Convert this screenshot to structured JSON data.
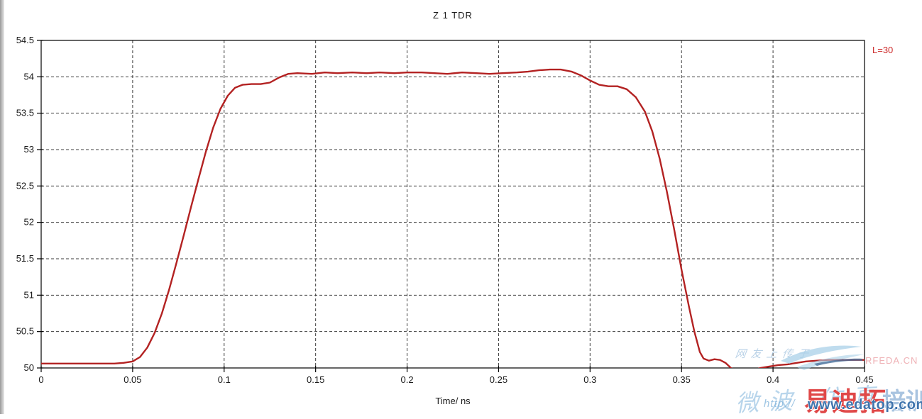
{
  "chart_data": {
    "type": "line",
    "title": "Z 1 TDR",
    "xlabel": "Time/ ns",
    "ylabel": "",
    "x_range": [
      0,
      0.45
    ],
    "y_range": [
      50,
      54.5
    ],
    "grid": "dashed",
    "legend": {
      "label": "L=30",
      "position": "top-right",
      "color": "#cc2a2a"
    },
    "x_ticks": [
      {
        "v": 0,
        "label": "0"
      },
      {
        "v": 0.05,
        "label": "0.05"
      },
      {
        "v": 0.1,
        "label": "0.1"
      },
      {
        "v": 0.15,
        "label": "0.15"
      },
      {
        "v": 0.2,
        "label": "0.2"
      },
      {
        "v": 0.25,
        "label": "0.25"
      },
      {
        "v": 0.3,
        "label": "0.3"
      },
      {
        "v": 0.35,
        "label": "0.35"
      },
      {
        "v": 0.4,
        "label": "0.4"
      },
      {
        "v": 0.45,
        "label": "0.45"
      }
    ],
    "y_ticks": [
      {
        "v": 54.5,
        "label": "54.5"
      },
      {
        "v": 54,
        "label": "54"
      },
      {
        "v": 53.5,
        "label": "53.5"
      },
      {
        "v": 53,
        "label": "53"
      },
      {
        "v": 52.5,
        "label": "52.5"
      },
      {
        "v": 52,
        "label": "52"
      },
      {
        "v": 51.5,
        "label": "51.5"
      },
      {
        "v": 51,
        "label": "51"
      },
      {
        "v": 50.5,
        "label": "50.5"
      },
      {
        "v": 50,
        "label": "50"
      }
    ],
    "series": [
      {
        "name": "L=30",
        "color": "#b32222",
        "points": [
          [
            0,
            50.06
          ],
          [
            0.01,
            50.06
          ],
          [
            0.02,
            50.06
          ],
          [
            0.03,
            50.06
          ],
          [
            0.04,
            50.06
          ],
          [
            0.045,
            50.07
          ],
          [
            0.05,
            50.09
          ],
          [
            0.054,
            50.15
          ],
          [
            0.058,
            50.28
          ],
          [
            0.062,
            50.48
          ],
          [
            0.066,
            50.75
          ],
          [
            0.07,
            51.08
          ],
          [
            0.074,
            51.45
          ],
          [
            0.078,
            51.83
          ],
          [
            0.082,
            52.22
          ],
          [
            0.086,
            52.6
          ],
          [
            0.09,
            52.97
          ],
          [
            0.094,
            53.3
          ],
          [
            0.098,
            53.56
          ],
          [
            0.102,
            53.74
          ],
          [
            0.106,
            53.85
          ],
          [
            0.11,
            53.89
          ],
          [
            0.115,
            53.9
          ],
          [
            0.12,
            53.9
          ],
          [
            0.125,
            53.92
          ],
          [
            0.13,
            53.99
          ],
          [
            0.135,
            54.04
          ],
          [
            0.14,
            54.05
          ],
          [
            0.148,
            54.04
          ],
          [
            0.155,
            54.06
          ],
          [
            0.162,
            54.05
          ],
          [
            0.17,
            54.06
          ],
          [
            0.178,
            54.05
          ],
          [
            0.185,
            54.06
          ],
          [
            0.193,
            54.05
          ],
          [
            0.2,
            54.06
          ],
          [
            0.208,
            54.06
          ],
          [
            0.215,
            54.05
          ],
          [
            0.222,
            54.04
          ],
          [
            0.23,
            54.06
          ],
          [
            0.238,
            54.05
          ],
          [
            0.245,
            54.04
          ],
          [
            0.252,
            54.05
          ],
          [
            0.26,
            54.06
          ],
          [
            0.266,
            54.07
          ],
          [
            0.272,
            54.09
          ],
          [
            0.278,
            54.1
          ],
          [
            0.284,
            54.1
          ],
          [
            0.29,
            54.07
          ],
          [
            0.295,
            54.02
          ],
          [
            0.3,
            53.95
          ],
          [
            0.305,
            53.89
          ],
          [
            0.31,
            53.87
          ],
          [
            0.315,
            53.87
          ],
          [
            0.32,
            53.83
          ],
          [
            0.325,
            53.72
          ],
          [
            0.33,
            53.52
          ],
          [
            0.334,
            53.25
          ],
          [
            0.338,
            52.88
          ],
          [
            0.342,
            52.42
          ],
          [
            0.346,
            51.9
          ],
          [
            0.35,
            51.35
          ],
          [
            0.354,
            50.85
          ],
          [
            0.357,
            50.5
          ],
          [
            0.36,
            50.22
          ],
          [
            0.362,
            50.13
          ],
          [
            0.365,
            50.1
          ],
          [
            0.368,
            50.12
          ],
          [
            0.371,
            50.11
          ],
          [
            0.374,
            50.07
          ],
          [
            0.377,
            50.0
          ],
          [
            0.381,
            49.93
          ],
          [
            0.385,
            49.9
          ],
          [
            0.389,
            49.96
          ],
          [
            0.393,
            50.0
          ],
          [
            0.398,
            50.02
          ],
          [
            0.403,
            50.04
          ],
          [
            0.408,
            50.05
          ],
          [
            0.413,
            50.07
          ],
          [
            0.418,
            50.09
          ],
          [
            0.424,
            50.1
          ],
          [
            0.43,
            50.11
          ],
          [
            0.437,
            50.11
          ],
          [
            0.444,
            50.11
          ],
          [
            0.45,
            50.11
          ]
        ]
      }
    ]
  },
  "watermarks": {
    "uploader_note": "网友上传于",
    "uploader_note_color": "rgba(140,180,215,0.6)",
    "rfeda_text": "RFEDA.CN",
    "rfeda_color": "#efb2b6",
    "script_text": "微波 仿真",
    "script_color": "rgba(125,178,218,0.55)",
    "http_prefix": "http://",
    "http_color": "rgba(125,178,218,0.75)",
    "brand_red_text": "易迪拓",
    "brand_red_color": "#e04848",
    "brand_blue_text": "培训",
    "brand_blue_color": "#a9c4e0",
    "site_url": "www.edatop.com",
    "site_url_color": "#3f74ad",
    "swoosh_light_color": "#a9d0e8",
    "swoosh_dark_color": "#4a6f9a"
  }
}
